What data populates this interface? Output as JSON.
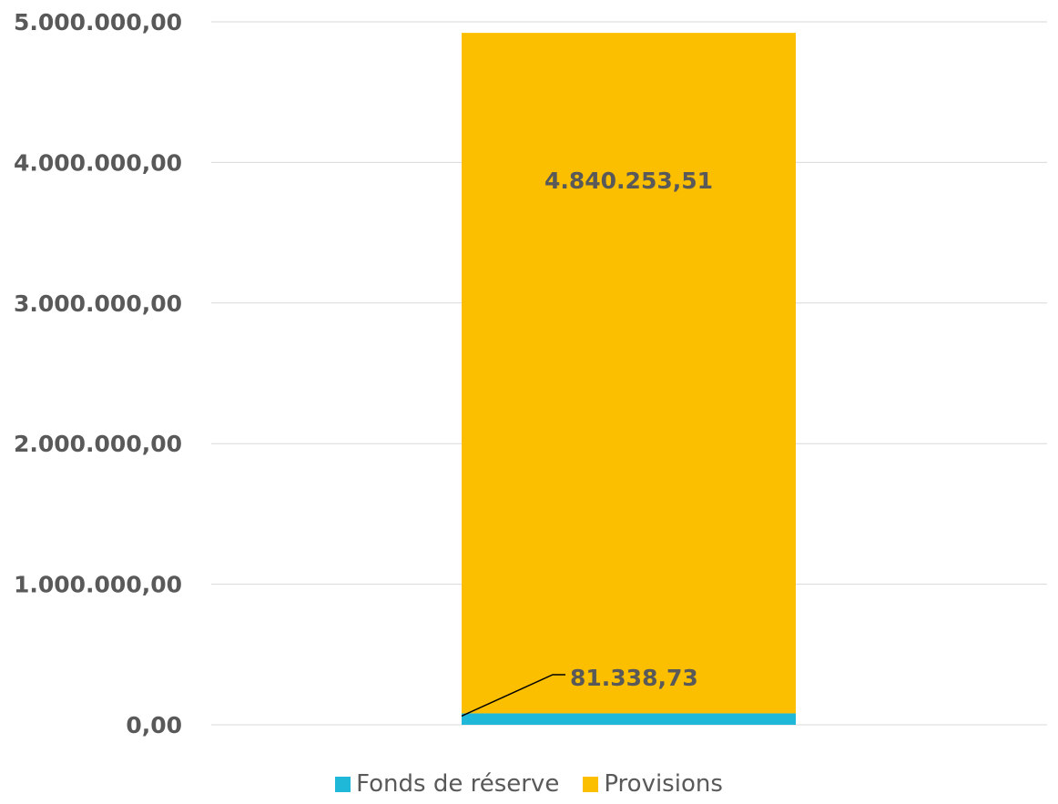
{
  "chart_data": {
    "type": "bar",
    "stacked": true,
    "categories": [
      ""
    ],
    "series": [
      {
        "name": "Fonds de réserve",
        "values": [
          81338.73
        ],
        "label": "81.338,73",
        "color": "#1FB8D8"
      },
      {
        "name": "Provisions",
        "values": [
          4840253.51
        ],
        "label": "4.840.253,51",
        "color": "#FBBF00"
      }
    ],
    "title": "",
    "xlabel": "",
    "ylabel": "",
    "ylim": [
      0,
      5000000
    ],
    "yticks": [
      0,
      1000000,
      2000000,
      3000000,
      4000000,
      5000000
    ],
    "ytick_labels": [
      "0,00",
      "1.000.000,00",
      "2.000.000,00",
      "3.000.000,00",
      "4.000.000,00",
      "5.000.000,00"
    ],
    "grid": true,
    "legend_position": "bottom"
  }
}
